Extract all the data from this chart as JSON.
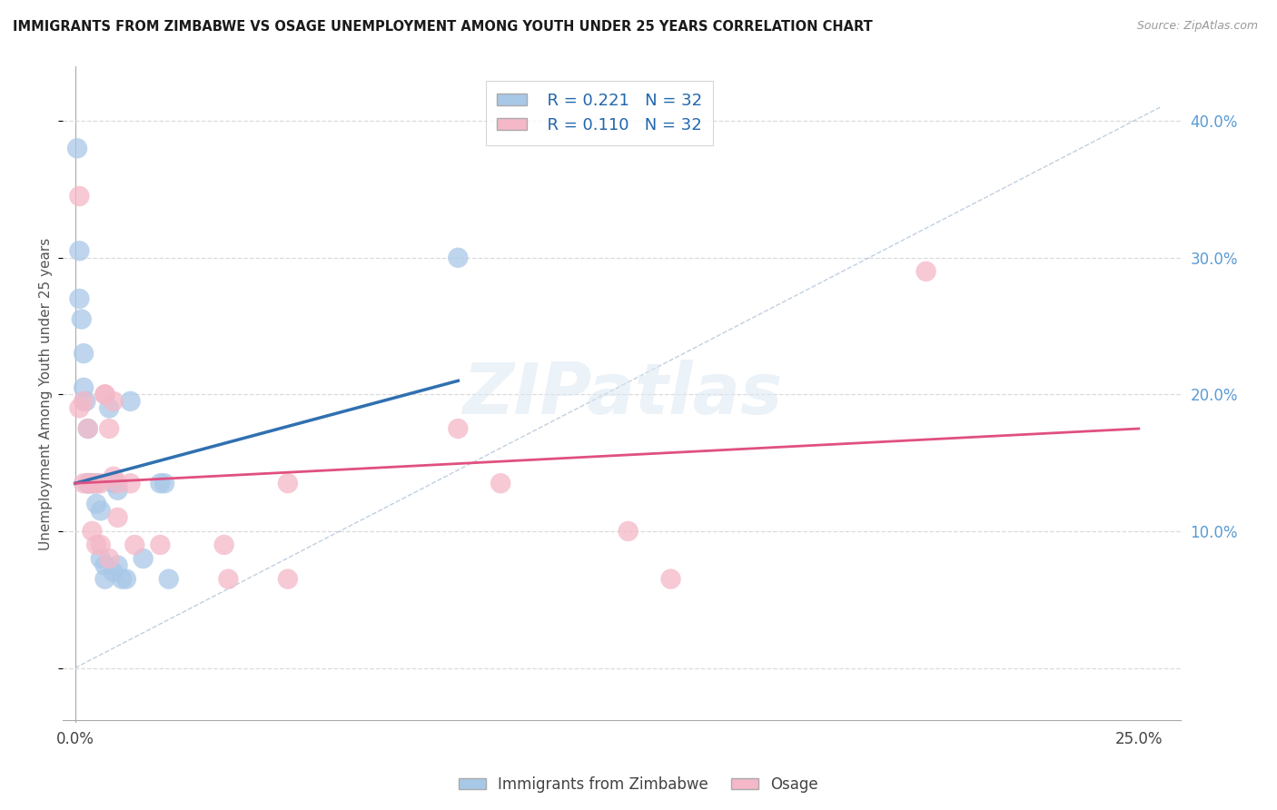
{
  "title": "IMMIGRANTS FROM ZIMBABWE VS OSAGE UNEMPLOYMENT AMONG YOUTH UNDER 25 YEARS CORRELATION CHART",
  "source": "Source: ZipAtlas.com",
  "ylabel": "Unemployment Among Youth under 25 years",
  "legend_r1": "R = 0.221",
  "legend_n1": "N = 32",
  "legend_r2": "R = 0.110",
  "legend_n2": "N = 32",
  "legend_label1": "Immigrants from Zimbabwe",
  "legend_label2": "Osage",
  "watermark": "ZIPatlas",
  "blue_color": "#a8c8e8",
  "pink_color": "#f4b8c8",
  "blue_line_color": "#3070b0",
  "pink_line_color": "#e05080",
  "diagonal_color": "#b0c4d8",
  "background_color": "#ffffff",
  "grid_color": "#d8d8d8",
  "blue_scatter_x": [
    0.0005,
    0.001,
    0.001,
    0.0015,
    0.002,
    0.002,
    0.0025,
    0.003,
    0.003,
    0.003,
    0.003,
    0.004,
    0.004,
    0.005,
    0.005,
    0.006,
    0.006,
    0.007,
    0.007,
    0.008,
    0.009,
    0.009,
    0.01,
    0.01,
    0.011,
    0.012,
    0.013,
    0.016,
    0.02,
    0.021,
    0.022,
    0.09
  ],
  "blue_scatter_y": [
    0.38,
    0.305,
    0.27,
    0.255,
    0.23,
    0.205,
    0.195,
    0.175,
    0.135,
    0.135,
    0.135,
    0.135,
    0.135,
    0.135,
    0.12,
    0.115,
    0.08,
    0.075,
    0.065,
    0.19,
    0.07,
    0.135,
    0.13,
    0.075,
    0.065,
    0.065,
    0.195,
    0.08,
    0.135,
    0.135,
    0.065,
    0.3
  ],
  "pink_scatter_x": [
    0.001,
    0.001,
    0.002,
    0.002,
    0.003,
    0.003,
    0.004,
    0.004,
    0.005,
    0.005,
    0.006,
    0.006,
    0.007,
    0.007,
    0.008,
    0.008,
    0.009,
    0.009,
    0.01,
    0.01,
    0.013,
    0.014,
    0.02,
    0.035,
    0.036,
    0.05,
    0.05,
    0.09,
    0.1,
    0.13,
    0.14,
    0.2
  ],
  "pink_scatter_y": [
    0.345,
    0.19,
    0.195,
    0.135,
    0.175,
    0.135,
    0.135,
    0.1,
    0.135,
    0.09,
    0.135,
    0.09,
    0.2,
    0.2,
    0.08,
    0.175,
    0.195,
    0.14,
    0.135,
    0.11,
    0.135,
    0.09,
    0.09,
    0.09,
    0.065,
    0.065,
    0.135,
    0.175,
    0.135,
    0.1,
    0.065,
    0.29
  ],
  "blue_line_x0": 0.0,
  "blue_line_x1": 0.09,
  "blue_line_y0": 0.135,
  "blue_line_y1": 0.21,
  "pink_line_x0": 0.0,
  "pink_line_x1": 0.25,
  "pink_line_y0": 0.135,
  "pink_line_y1": 0.175,
  "xlim_min": -0.003,
  "xlim_max": 0.26,
  "ylim_min": -0.04,
  "ylim_max": 0.44
}
